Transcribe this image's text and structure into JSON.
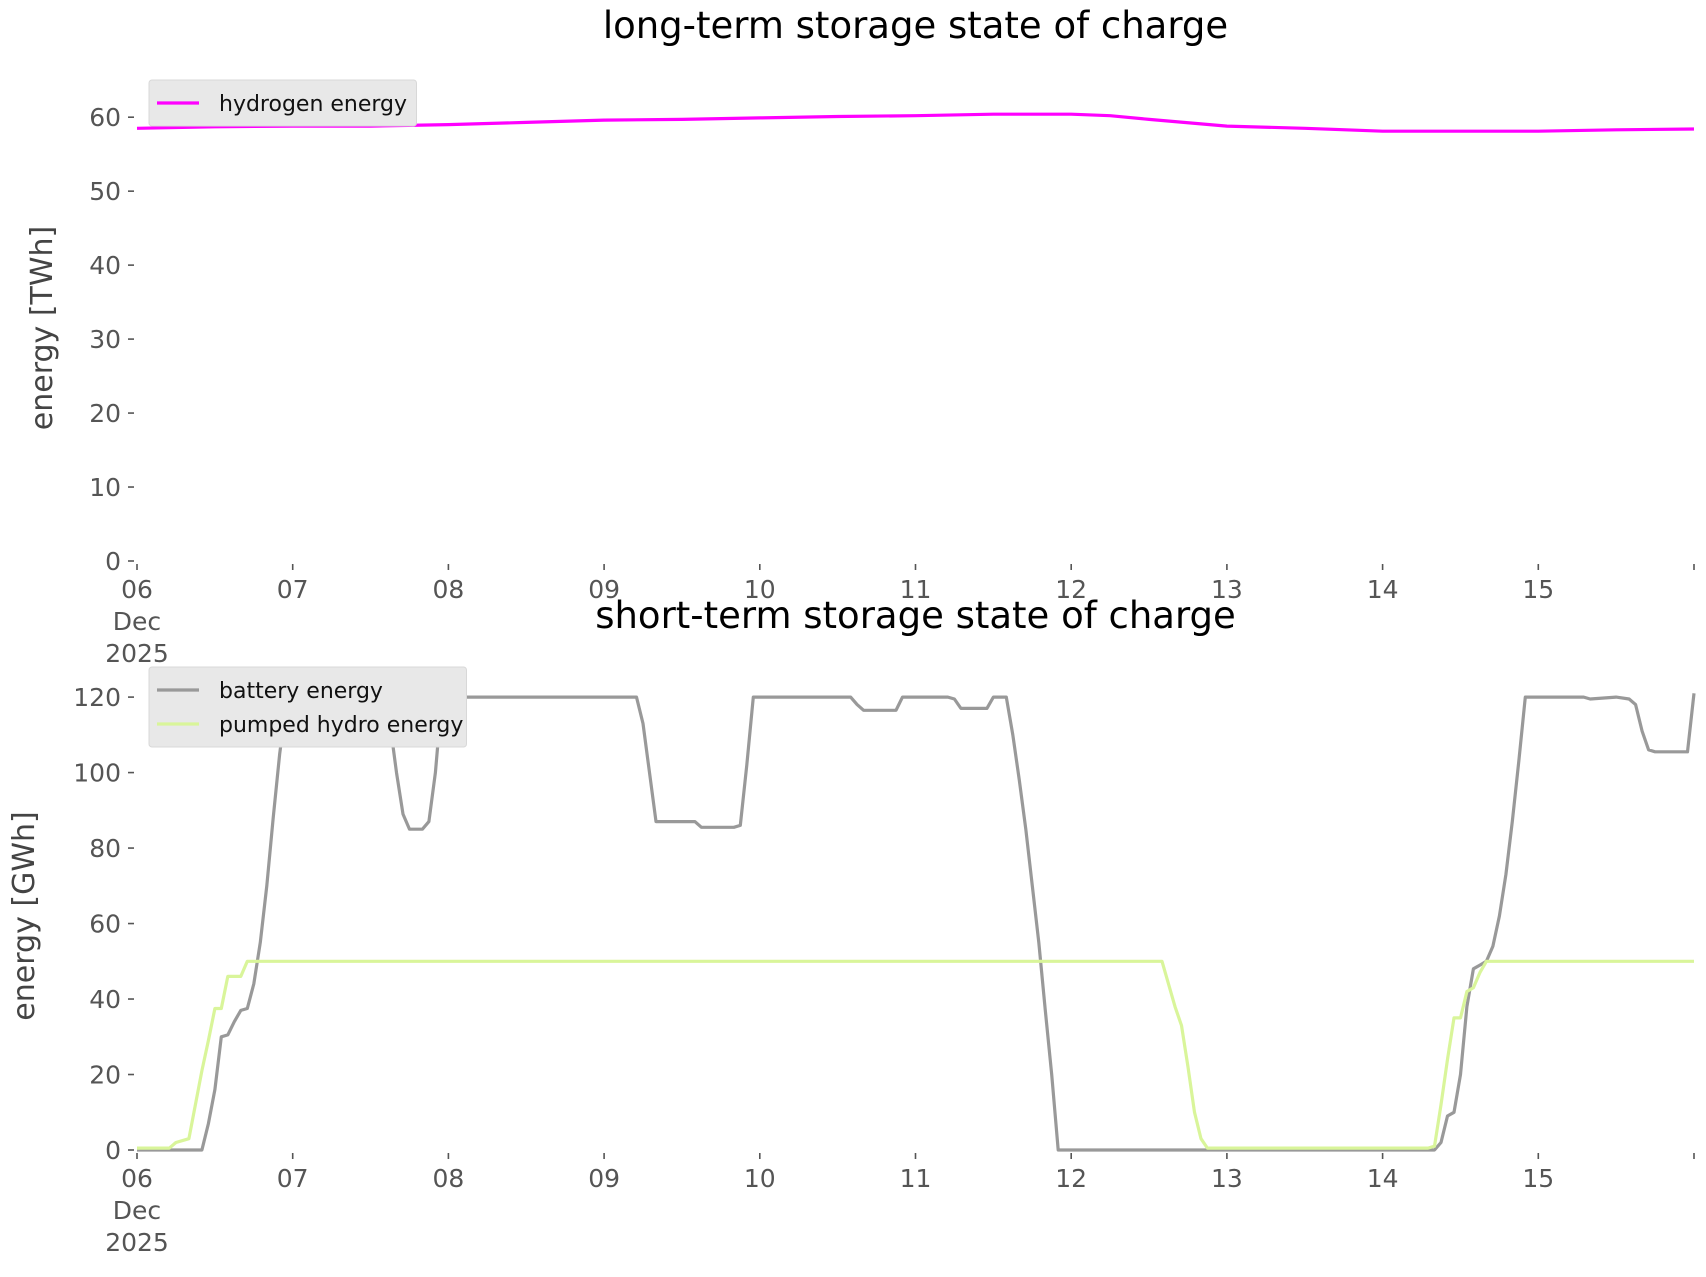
{
  "chart_data": [
    {
      "type": "line",
      "title": "long-term storage state of charge",
      "xlabel": "",
      "ylabel": "energy [TWh]",
      "x_tick_labels": [
        {
          "x": "2025-12-06",
          "lines": [
            "06",
            "Dec",
            "2025"
          ]
        },
        {
          "x": "2025-12-07",
          "lines": [
            "07"
          ]
        },
        {
          "x": "2025-12-08",
          "lines": [
            "08"
          ]
        },
        {
          "x": "2025-12-09",
          "lines": [
            "09"
          ]
        },
        {
          "x": "2025-12-10",
          "lines": [
            "10"
          ]
        },
        {
          "x": "2025-12-11",
          "lines": [
            "11"
          ]
        },
        {
          "x": "2025-12-12",
          "lines": [
            "12"
          ]
        },
        {
          "x": "2025-12-13",
          "lines": [
            "13"
          ]
        },
        {
          "x": "2025-12-14",
          "lines": [
            "14"
          ]
        },
        {
          "x": "2025-12-15",
          "lines": [
            "15"
          ]
        }
      ],
      "xlim": [
        "2025-12-06",
        "2025-12-16"
      ],
      "y_ticks": [
        0,
        10,
        20,
        30,
        40,
        50,
        60
      ],
      "ylim": [
        0,
        63
      ],
      "grid": false,
      "legend": "top-left",
      "series": [
        {
          "name": "hydrogen energy",
          "color": "#ff00ff",
          "points": [
            [
              "2025-12-06 00:00",
              58.5
            ],
            [
              "2025-12-06 12:00",
              58.7
            ],
            [
              "2025-12-07 00:00",
              58.8
            ],
            [
              "2025-12-07 12:00",
              58.8
            ],
            [
              "2025-12-08 00:00",
              59.0
            ],
            [
              "2025-12-08 12:00",
              59.3
            ],
            [
              "2025-12-09 00:00",
              59.6
            ],
            [
              "2025-12-09 12:00",
              59.7
            ],
            [
              "2025-12-10 00:00",
              59.9
            ],
            [
              "2025-12-10 12:00",
              60.1
            ],
            [
              "2025-12-11 00:00",
              60.2
            ],
            [
              "2025-12-11 12:00",
              60.4
            ],
            [
              "2025-12-12 00:00",
              60.4
            ],
            [
              "2025-12-12 06:00",
              60.2
            ],
            [
              "2025-12-12 12:00",
              59.7
            ],
            [
              "2025-12-13 00:00",
              58.8
            ],
            [
              "2025-12-13 12:00",
              58.5
            ],
            [
              "2025-12-14 00:00",
              58.1
            ],
            [
              "2025-12-14 12:00",
              58.1
            ],
            [
              "2025-12-15 00:00",
              58.1
            ],
            [
              "2025-12-15 12:00",
              58.3
            ],
            [
              "2025-12-16 00:00",
              58.4
            ]
          ]
        }
      ]
    },
    {
      "type": "line",
      "title": "short-term storage state of charge",
      "xlabel": "",
      "ylabel": "energy [GWh]",
      "x_tick_labels": [
        {
          "x": "2025-12-06",
          "lines": [
            "06",
            "Dec",
            "2025"
          ]
        },
        {
          "x": "2025-12-07",
          "lines": [
            "07"
          ]
        },
        {
          "x": "2025-12-08",
          "lines": [
            "08"
          ]
        },
        {
          "x": "2025-12-09",
          "lines": [
            "09"
          ]
        },
        {
          "x": "2025-12-10",
          "lines": [
            "10"
          ]
        },
        {
          "x": "2025-12-11",
          "lines": [
            "11"
          ]
        },
        {
          "x": "2025-12-12",
          "lines": [
            "12"
          ]
        },
        {
          "x": "2025-12-13",
          "lines": [
            "13"
          ]
        },
        {
          "x": "2025-12-14",
          "lines": [
            "14"
          ]
        },
        {
          "x": "2025-12-15",
          "lines": [
            "15"
          ]
        }
      ],
      "xlim": [
        "2025-12-06",
        "2025-12-16"
      ],
      "y_ticks": [
        0,
        20,
        40,
        60,
        80,
        100,
        120
      ],
      "ylim": [
        0,
        124
      ],
      "grid": false,
      "legend": "top-left",
      "series": [
        {
          "name": "battery energy",
          "color": "#999999",
          "points": [
            [
              "2025-12-06 00:00",
              0
            ],
            [
              "2025-12-06 10:00",
              0
            ],
            [
              "2025-12-06 11:00",
              7
            ],
            [
              "2025-12-06 12:00",
              16
            ],
            [
              "2025-12-06 13:00",
              30
            ],
            [
              "2025-12-06 14:00",
              30.5
            ],
            [
              "2025-12-06 15:00",
              34
            ],
            [
              "2025-12-06 16:00",
              37
            ],
            [
              "2025-12-06 17:00",
              37.5
            ],
            [
              "2025-12-06 18:00",
              44
            ],
            [
              "2025-12-06 19:00",
              55
            ],
            [
              "2025-12-06 20:00",
              70
            ],
            [
              "2025-12-06 21:00",
              88
            ],
            [
              "2025-12-06 22:00",
              105
            ],
            [
              "2025-12-06 23:00",
              118
            ],
            [
              "2025-12-07 00:00",
              120
            ],
            [
              "2025-12-07 14:00",
              120
            ],
            [
              "2025-12-07 15:00",
              113
            ],
            [
              "2025-12-07 16:00",
              100
            ],
            [
              "2025-12-07 17:00",
              89
            ],
            [
              "2025-12-07 18:00",
              85
            ],
            [
              "2025-12-07 20:00",
              85
            ],
            [
              "2025-12-07 21:00",
              87
            ],
            [
              "2025-12-07 22:00",
              100
            ],
            [
              "2025-12-07 23:00",
              120
            ],
            [
              "2025-12-09 05:00",
              120
            ],
            [
              "2025-12-09 06:00",
              113
            ],
            [
              "2025-12-09 07:00",
              100
            ],
            [
              "2025-12-09 08:00",
              87
            ],
            [
              "2025-12-09 14:00",
              87
            ],
            [
              "2025-12-09 15:00",
              85.5
            ],
            [
              "2025-12-09 20:00",
              85.5
            ],
            [
              "2025-12-09 21:00",
              86
            ],
            [
              "2025-12-09 22:00",
              102
            ],
            [
              "2025-12-09 23:00",
              120
            ],
            [
              "2025-12-10 14:00",
              120
            ],
            [
              "2025-12-10 15:00",
              118
            ],
            [
              "2025-12-10 16:00",
              116.5
            ],
            [
              "2025-12-10 21:00",
              116.5
            ],
            [
              "2025-12-10 22:00",
              120
            ],
            [
              "2025-12-11 05:00",
              120
            ],
            [
              "2025-12-11 06:00",
              119.5
            ],
            [
              "2025-12-11 07:00",
              117
            ],
            [
              "2025-12-11 11:00",
              117
            ],
            [
              "2025-12-11 12:00",
              120
            ],
            [
              "2025-12-11 14:00",
              120
            ],
            [
              "2025-12-11 15:00",
              110
            ],
            [
              "2025-12-11 16:00",
              98
            ],
            [
              "2025-12-11 17:00",
              85
            ],
            [
              "2025-12-11 18:00",
              70
            ],
            [
              "2025-12-11 19:00",
              55
            ],
            [
              "2025-12-11 20:00",
              37
            ],
            [
              "2025-12-11 21:00",
              20
            ],
            [
              "2025-12-11 22:00",
              0
            ],
            [
              "2025-12-14 08:00",
              0
            ],
            [
              "2025-12-14 09:00",
              2
            ],
            [
              "2025-12-14 10:00",
              9
            ],
            [
              "2025-12-14 11:00",
              10
            ],
            [
              "2025-12-14 12:00",
              20
            ],
            [
              "2025-12-14 13:00",
              38
            ],
            [
              "2025-12-14 14:00",
              48
            ],
            [
              "2025-12-14 15:00",
              49
            ],
            [
              "2025-12-14 16:00",
              50
            ],
            [
              "2025-12-14 17:00",
              54
            ],
            [
              "2025-12-14 18:00",
              62
            ],
            [
              "2025-12-14 19:00",
              73
            ],
            [
              "2025-12-14 20:00",
              87
            ],
            [
              "2025-12-14 21:00",
              103
            ],
            [
              "2025-12-14 22:00",
              120
            ],
            [
              "2025-12-15 07:00",
              120
            ],
            [
              "2025-12-15 08:00",
              119.5
            ],
            [
              "2025-12-15 12:00",
              120
            ],
            [
              "2025-12-15 14:00",
              119.5
            ],
            [
              "2025-12-15 15:00",
              118
            ],
            [
              "2025-12-15 16:00",
              111
            ],
            [
              "2025-12-15 17:00",
              106
            ],
            [
              "2025-12-15 18:00",
              105.5
            ],
            [
              "2025-12-15 23:00",
              105.5
            ],
            [
              "2025-12-16 00:00",
              121
            ]
          ]
        },
        {
          "name": "pumped hydro energy",
          "color": "#d9f59a",
          "points": [
            [
              "2025-12-06 00:00",
              0.5
            ],
            [
              "2025-12-06 05:00",
              0.5
            ],
            [
              "2025-12-06 06:00",
              2
            ],
            [
              "2025-12-06 08:00",
              3
            ],
            [
              "2025-12-06 09:00",
              12
            ],
            [
              "2025-12-06 10:00",
              21
            ],
            [
              "2025-12-06 11:00",
              29
            ],
            [
              "2025-12-06 12:00",
              37.5
            ],
            [
              "2025-12-06 13:00",
              37.5
            ],
            [
              "2025-12-06 14:00",
              46
            ],
            [
              "2025-12-06 16:00",
              46
            ],
            [
              "2025-12-06 17:00",
              50
            ],
            [
              "2025-12-12 14:00",
              50
            ],
            [
              "2025-12-12 15:00",
              44
            ],
            [
              "2025-12-12 16:00",
              38
            ],
            [
              "2025-12-12 17:00",
              33
            ],
            [
              "2025-12-12 18:00",
              22
            ],
            [
              "2025-12-12 19:00",
              10
            ],
            [
              "2025-12-12 20:00",
              3
            ],
            [
              "2025-12-12 21:00",
              0.5
            ],
            [
              "2025-12-14 07:00",
              0.5
            ],
            [
              "2025-12-14 08:00",
              1
            ],
            [
              "2025-12-14 09:00",
              12
            ],
            [
              "2025-12-14 10:00",
              24
            ],
            [
              "2025-12-14 11:00",
              35
            ],
            [
              "2025-12-14 12:00",
              35
            ],
            [
              "2025-12-14 13:00",
              42
            ],
            [
              "2025-12-14 14:00",
              43
            ],
            [
              "2025-12-14 15:00",
              47
            ],
            [
              "2025-12-14 16:00",
              50
            ],
            [
              "2025-12-16 00:00",
              50
            ]
          ]
        }
      ]
    }
  ]
}
